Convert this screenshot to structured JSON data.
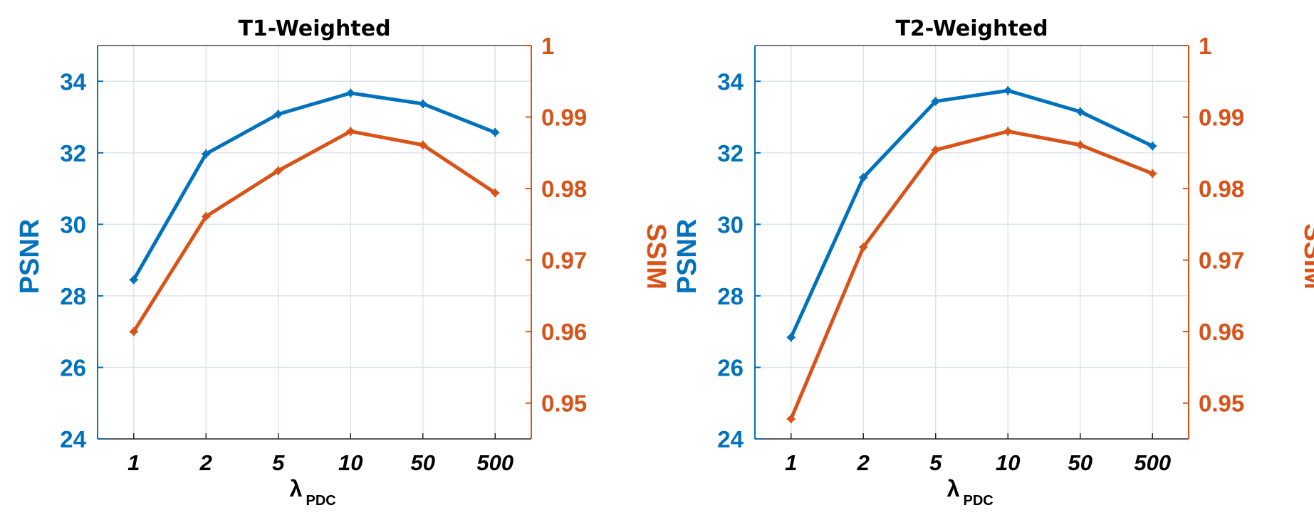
{
  "colors": {
    "psnr": "#0072BD",
    "ssim": "#D95319",
    "grid": "#dfe3e8",
    "axis_bottom": "#262626",
    "title": "#000000"
  },
  "chart_data": [
    {
      "type": "line",
      "title": "T1-Weighted",
      "categories": [
        "1",
        "2",
        "5",
        "10",
        "50",
        "500"
      ],
      "xlabel": "λ",
      "xlabel_sub": "PDC",
      "ylabel_left": "PSNR",
      "ylabel_right": "SSIM",
      "ylim_left": [
        24,
        35
      ],
      "yticks_left": [
        "24",
        "26",
        "28",
        "30",
        "32",
        "34"
      ],
      "ylim_right": [
        0.945,
        1.0
      ],
      "yticks_right": [
        "0.95",
        "0.96",
        "0.97",
        "0.98",
        "0.99",
        "1"
      ],
      "grid": true,
      "series": [
        {
          "name": "PSNR",
          "axis": "left",
          "values": [
            28.45,
            31.97,
            33.08,
            33.67,
            33.37,
            32.57
          ]
        },
        {
          "name": "SSIM",
          "axis": "right",
          "values": [
            0.96,
            0.9761,
            0.9825,
            0.988,
            0.9861,
            0.9794
          ]
        }
      ]
    },
    {
      "type": "line",
      "title": "T2-Weighted",
      "categories": [
        "1",
        "2",
        "5",
        "10",
        "50",
        "500"
      ],
      "xlabel": "λ",
      "xlabel_sub": "PDC",
      "ylabel_left": "PSNR",
      "ylabel_right": "SSIM",
      "ylim_left": [
        24,
        35
      ],
      "yticks_left": [
        "24",
        "26",
        "28",
        "30",
        "32",
        "34"
      ],
      "ylim_right": [
        0.945,
        1.0
      ],
      "yticks_right": [
        "0.95",
        "0.96",
        "0.97",
        "0.98",
        "0.99",
        "1"
      ],
      "grid": true,
      "series": [
        {
          "name": "PSNR",
          "axis": "left",
          "values": [
            26.84,
            31.31,
            33.44,
            33.74,
            33.15,
            32.19
          ]
        },
        {
          "name": "SSIM",
          "axis": "right",
          "values": [
            0.9478,
            0.9718,
            0.9854,
            0.988,
            0.9861,
            0.9821
          ]
        }
      ]
    }
  ]
}
